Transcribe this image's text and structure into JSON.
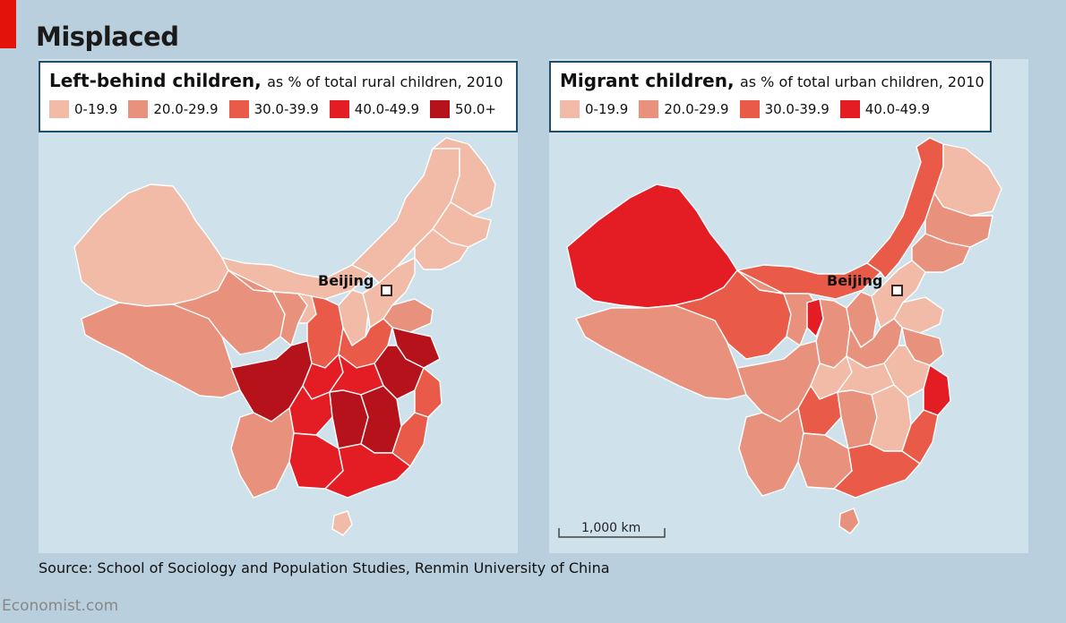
{
  "title": "Misplaced",
  "colors": {
    "bg": "#b9cfdd",
    "sea": "#cfe2ec",
    "accent": "#e3120b",
    "c1": "#f1bba7",
    "c2": "#e8917c",
    "c3": "#ea5a48",
    "c4": "#e41c24",
    "c5": "#b5121b"
  },
  "left_map": {
    "title_bold": "Left-behind children,",
    "title_rest": "as % of total rural children, 2010",
    "legend": [
      "0-19.9",
      "20.0-29.9",
      "30.0-39.9",
      "40.0-49.9",
      "50.0+"
    ],
    "city": "Beijing"
  },
  "right_map": {
    "title_bold": "Migrant children,",
    "title_rest": "as % of total urban children, 2010",
    "legend": [
      "0-19.9",
      "20.0-29.9",
      "30.0-39.9",
      "40.0-49.9"
    ],
    "city": "Beijing",
    "scale_label": "1,000 km"
  },
  "source": "Source: School of Sociology and Population Studies, Renmin University of China",
  "footer": "Economist.com"
}
